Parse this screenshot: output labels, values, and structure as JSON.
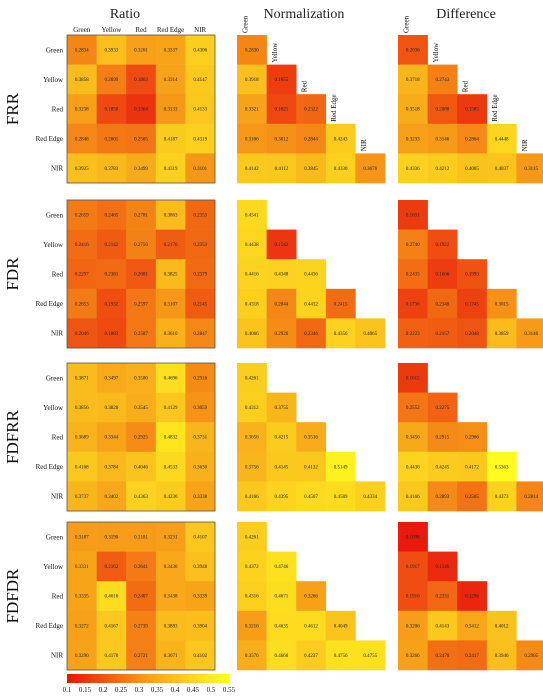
{
  "column_titles": [
    "Ratio",
    "Normalization",
    "Difference"
  ],
  "band_labels": [
    "Green",
    "Yellow",
    "Red",
    "Red Edge",
    "NIR"
  ],
  "colorbar": {
    "ticks": [
      "0.1",
      "0.15",
      "0.2",
      "0.25",
      "0.3",
      "0.35",
      "0.4",
      "0.45",
      "0.5",
      "0.55"
    ],
    "colors": [
      "#e8140c",
      "#f05a12",
      "#f7a019",
      "#fcd21f",
      "#ffff20"
    ]
  },
  "chart_data": {
    "type": "heatmap",
    "vmin": 0.1,
    "vmax": 0.55,
    "rows": [
      "FRR",
      "FDR",
      "FDFRR",
      "FDFDR"
    ],
    "columns": [
      "Ratio",
      "Normalization",
      "Difference"
    ],
    "bands": [
      "Green",
      "Yellow",
      "Red",
      "Red Edge",
      "NIR"
    ],
    "matrices": {
      "FRR": {
        "Ratio": [
          [
            "0.2834",
            "0.3933",
            "0.3261",
            "0.3337",
            "0.4306"
          ],
          [
            "0.3858",
            "0.2699",
            "0.1863",
            "0.3314",
            "0.4147"
          ],
          [
            "0.3238",
            "0.1850",
            "0.1504",
            "0.3133",
            "0.4133"
          ],
          [
            "0.2848",
            "0.2601",
            "0.2565",
            "0.4187",
            "0.4319"
          ],
          [
            "0.3925",
            "0.3783",
            "0.3499",
            "0.4319",
            "0.3101"
          ]
        ],
        "Normalization": [
          [
            "0.2830"
          ],
          [
            "0.3918",
            "0.1655"
          ],
          [
            "0.3321",
            "0.1821",
            "0.2322"
          ],
          [
            "0.3106",
            "0.3012",
            "0.2844",
            "0.4243"
          ],
          [
            "0.4142",
            "0.4112",
            "0.3845",
            "0.4330",
            "0.3076"
          ]
        ],
        "Difference": [
          [
            "0.2036"
          ],
          [
            "0.3718",
            "0.2743"
          ],
          [
            "0.3518",
            "0.2088",
            "0.1585"
          ],
          [
            "0.3233",
            "0.3146",
            "0.2864",
            "0.4448"
          ],
          [
            "0.4336",
            "0.4212",
            "0.4005",
            "0.4037",
            "0.3115"
          ]
        ]
      },
      "FDR": {
        "Ratio": [
          [
            "0.2659",
            "0.2465",
            "0.2781",
            "0.3863",
            "0.2353"
          ],
          [
            "0.2416",
            "0.2142",
            "0.2756",
            "0.2176",
            "0.2353"
          ],
          [
            "0.2297",
            "0.2381",
            "0.2081",
            "0.3825",
            "0.2379"
          ],
          [
            "0.2653",
            "0.1932",
            "0.2597",
            "0.3107",
            "0.2145"
          ],
          [
            "0.2046",
            "0.1883",
            "0.2587",
            "0.3610",
            "0.2847"
          ]
        ],
        "Normalization": [
          [
            "0.4541"
          ],
          [
            "0.4438",
            "0.1542"
          ],
          [
            "0.4416",
            "0.4348",
            "0.4436"
          ],
          [
            "0.4318",
            "0.2844",
            "0.4432",
            "0.2415"
          ],
          [
            "0.4066",
            "0.2926",
            "0.2346",
            "0.4356",
            "0.4065"
          ]
        ],
        "Difference": [
          [
            "0.1631"
          ],
          [
            "0.2740",
            "0.1922"
          ],
          [
            "0.2435",
            "0.1666",
            "0.1993"
          ],
          [
            "0.1736",
            "0.2348",
            "0.1745",
            "0.3015"
          ],
          [
            "0.2223",
            "0.2157",
            "0.2048",
            "0.3859",
            "0.3146"
          ]
        ]
      },
      "FDFRR": {
        "Ratio": [
          [
            "0.3871",
            "0.3497",
            "0.3580",
            "0.4696",
            "0.2916"
          ],
          [
            "0.3856",
            "0.3828",
            "0.3545",
            "0.4129",
            "0.3059"
          ],
          [
            "0.3689",
            "0.3344",
            "0.2925",
            "0.4832",
            "0.3731"
          ],
          [
            "0.4168",
            "0.3784",
            "0.4046",
            "0.4533",
            "0.3630"
          ],
          [
            "0.3737",
            "0.3402",
            "0.4363",
            "0.4236",
            "0.3338"
          ]
        ],
        "Normalization": [
          [
            "0.4261"
          ],
          [
            "0.4312",
            "0.3755"
          ],
          [
            "0.3656",
            "0.4215",
            "0.3516"
          ],
          [
            "0.3756",
            "0.4145",
            "0.4132",
            "0.5149"
          ],
          [
            "0.4166",
            "0.4395",
            "0.4567",
            "0.4589",
            "0.4334"
          ]
        ],
        "Difference": [
          [
            "0.1615"
          ],
          [
            "0.2552",
            "0.2275"
          ],
          [
            "0.3456",
            "0.2915",
            "0.2966"
          ],
          [
            "0.4436",
            "0.4245",
            "0.4172",
            "0.5363"
          ],
          [
            "0.4166",
            "0.2893",
            "0.2505",
            "0.4373",
            "0.2814"
          ]
        ]
      },
      "FDFDR": {
        "Ratio": [
          [
            "0.3187",
            "0.3190",
            "0.3181",
            "0.3231",
            "0.4107"
          ],
          [
            "0.3331",
            "0.2162",
            "0.2641",
            "0.3436",
            "0.3948"
          ],
          [
            "0.3335",
            "0.4616",
            "0.2407",
            "0.3438",
            "0.3339"
          ],
          [
            "0.3272",
            "0.4167",
            "0.2739",
            "0.3883",
            "0.3904"
          ],
          [
            "0.3290",
            "0.4170",
            "0.2721",
            "0.3671",
            "0.4102"
          ]
        ],
        "Normalization": [
          [
            "0.4261"
          ],
          [
            "0.4372",
            "0.4746"
          ],
          [
            "0.4316",
            "0.4671",
            "0.3266"
          ],
          [
            "0.3216",
            "0.4635",
            "0.4612",
            "0.4049"
          ],
          [
            "0.3576",
            "0.4660",
            "0.4237",
            "0.4756",
            "0.4755"
          ]
        ],
        "Difference": [
          [
            "0.1098"
          ],
          [
            "0.1917",
            "0.1346"
          ],
          [
            "0.1916",
            "0.2331",
            "0.1296"
          ],
          [
            "0.3206",
            "0.4143",
            "0.3412",
            "0.4012"
          ],
          [
            "0.3266",
            "0.2470",
            "0.2417",
            "0.3946",
            "0.2905"
          ]
        ]
      }
    }
  }
}
